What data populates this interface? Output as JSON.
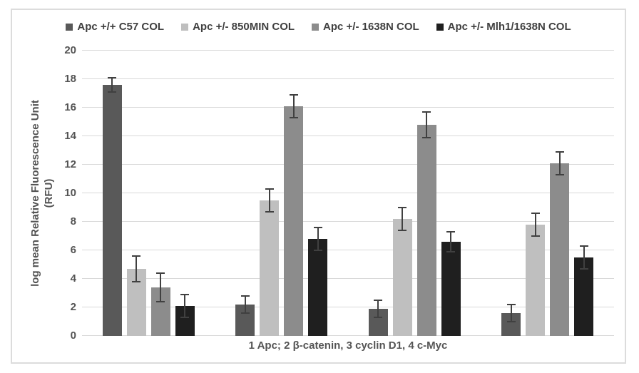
{
  "figure": {
    "background": "#ffffff",
    "border_color": "#dcdcdc"
  },
  "y_axis": {
    "label_line1": "log mean Relative Fluorescence Unit",
    "label_line2": "(RFU)"
  },
  "chart_data": {
    "type": "bar",
    "title": "",
    "categories": [
      "1 Apc",
      "2 β-catenin",
      "3 cyclin D1",
      "4 c-Myc"
    ],
    "series": [
      {
        "name": "Apc +/+ C57 COL",
        "color": "#595959",
        "values": [
          17.6,
          2.2,
          1.9,
          1.6
        ],
        "errors": [
          0.5,
          0.6,
          0.6,
          0.6
        ]
      },
      {
        "name": "Apc +/- 850MIN COL",
        "color": "#bfbfbf",
        "values": [
          4.7,
          9.5,
          8.2,
          7.8
        ],
        "errors": [
          0.9,
          0.8,
          0.8,
          0.8
        ]
      },
      {
        "name": "Apc +/- 1638N COL",
        "color": "#8c8c8c",
        "values": [
          3.4,
          16.1,
          14.8,
          12.1
        ],
        "errors": [
          1.0,
          0.8,
          0.9,
          0.8
        ]
      },
      {
        "name": "Apc +/- Mlh1/1638N COL",
        "color": "#1f1f1f",
        "values": [
          2.1,
          6.8,
          6.6,
          5.5
        ],
        "errors": [
          0.8,
          0.8,
          0.7,
          0.8
        ]
      }
    ],
    "xlabel": "1 Apc; 2 β-catenin, 3 cyclin D1, 4 c-Myc",
    "ylabel": "log mean Relative Fluorescence Unit (RFU)",
    "ylim": [
      0,
      20
    ],
    "yticks": [
      0,
      2,
      4,
      6,
      8,
      10,
      12,
      14,
      16,
      18,
      20
    ],
    "grid": true,
    "legend_position": "top",
    "error_bar_color": "#404040",
    "gridline_color": "#d9d9d9",
    "text_color": "#545454"
  }
}
